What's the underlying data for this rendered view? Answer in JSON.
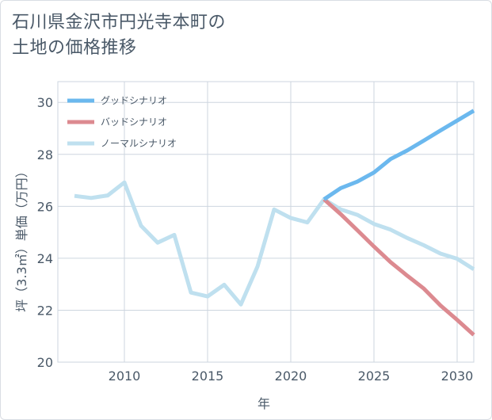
{
  "title_line1": "石川県金沢市円光寺本町の",
  "title_line2": "土地の価格推移",
  "chart_data": {
    "type": "line",
    "xlabel": "年",
    "ylabel": "坪（3.3㎡）単価（万円）",
    "xlim": [
      2006,
      2031
    ],
    "ylim": [
      20,
      30.8
    ],
    "x_ticks": [
      2010,
      2015,
      2020,
      2025,
      2030
    ],
    "y_ticks": [
      20,
      22,
      24,
      26,
      28,
      30
    ],
    "grid": true,
    "legend_position": "top-left",
    "series": [
      {
        "name": "グッドシナリオ",
        "color": "#6bb8ee",
        "x": [
          2022,
          2023,
          2024,
          2025,
          2026,
          2027,
          2028,
          2029,
          2030,
          2031
        ],
        "y": [
          26.27,
          26.7,
          26.95,
          27.3,
          27.82,
          28.15,
          28.53,
          28.92,
          29.3,
          29.68
        ]
      },
      {
        "name": "バッドシナリオ",
        "color": "#dc8a90",
        "x": [
          2022,
          2023,
          2024,
          2025,
          2026,
          2027,
          2028,
          2029,
          2030,
          2031
        ],
        "y": [
          26.27,
          25.7,
          25.08,
          24.45,
          23.85,
          23.33,
          22.83,
          22.18,
          21.63,
          21.05
        ]
      },
      {
        "name": "ノーマルシナリオ",
        "color": "#bfe0ef",
        "x": [
          2007,
          2008,
          2009,
          2010,
          2011,
          2012,
          2013,
          2014,
          2015,
          2016,
          2017,
          2018,
          2019,
          2020,
          2021,
          2022,
          2023,
          2024,
          2025,
          2026,
          2027,
          2028,
          2029,
          2030,
          2031
        ],
        "y": [
          26.4,
          26.32,
          26.42,
          26.92,
          25.25,
          24.6,
          24.9,
          22.68,
          22.53,
          22.98,
          22.22,
          23.68,
          25.88,
          25.55,
          25.38,
          26.27,
          25.88,
          25.67,
          25.32,
          25.1,
          24.78,
          24.5,
          24.18,
          23.98,
          23.58
        ]
      }
    ]
  }
}
